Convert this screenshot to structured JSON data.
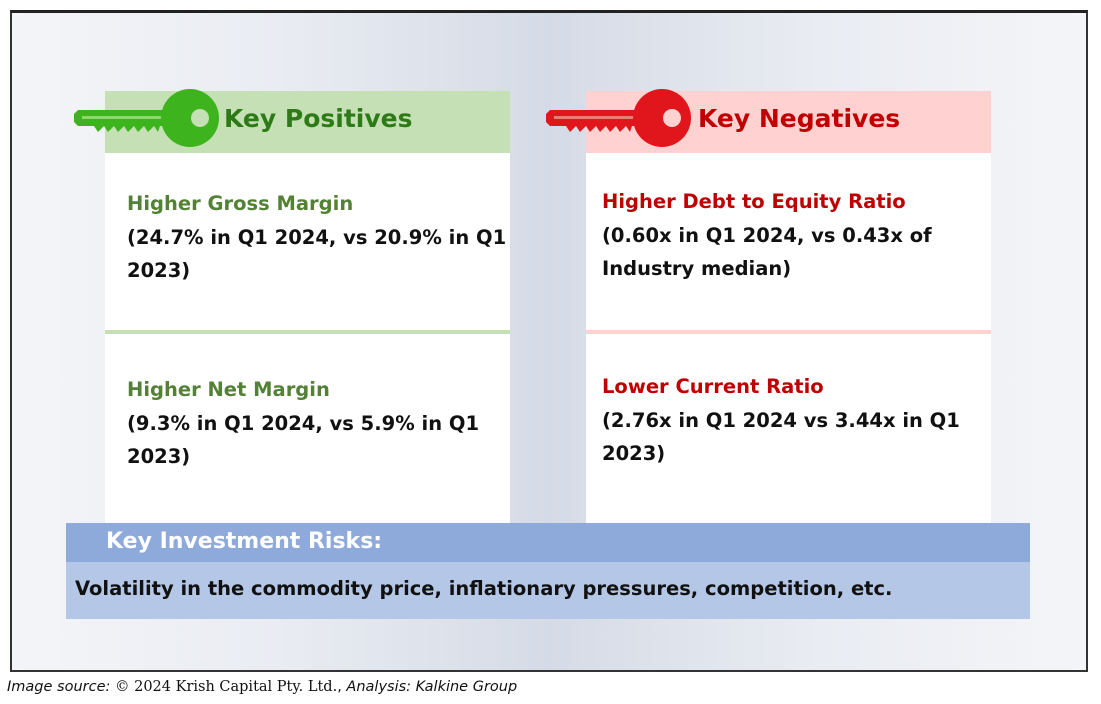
{
  "positives": {
    "header": "Key Positives",
    "items": [
      {
        "title": "Higher Gross Margin",
        "line1": "(24.7% in Q1 2024, vs 20.9% in Q1",
        "line2": "2023)"
      },
      {
        "title": "Higher Net Margin",
        "line1": "(9.3% in Q1 2024, vs 5.9% in Q1",
        "line2": "2023)"
      }
    ]
  },
  "negatives": {
    "header": "Key Negatives",
    "items": [
      {
        "title": "Higher Debt to Equity Ratio",
        "line1": "(0.60x in Q1 2024, vs 0.43x of",
        "line2": "Industry median)"
      },
      {
        "title": "Lower Current Ratio",
        "line1": "(2.76x in Q1 2024 vs 3.44x in Q1",
        "line2": "2023)"
      }
    ]
  },
  "risks": {
    "header": "Key Investment Risks:",
    "text": "Volatility in the commodity price, inflationary pressures, competition, etc."
  },
  "footer": {
    "prefix": "Image source: ",
    "source": "© 2024 Krish Capital Pty. Ltd.",
    "separator": ", ",
    "analysis": "Analysis: Kalkine Group"
  },
  "colors": {
    "positive_accent": "#3db31d",
    "positive_text": "#538135",
    "positive_header_bg": "#c5e0b4",
    "negative_accent": "#e0161c",
    "negative_text": "#c00000",
    "negative_header_bg": "#ffd1d1",
    "risk_header_bg": "#8eaadb",
    "risk_body_bg": "#b4c7e7"
  },
  "icons": {
    "positive_key": "green-key-icon",
    "negative_key": "red-key-icon"
  }
}
